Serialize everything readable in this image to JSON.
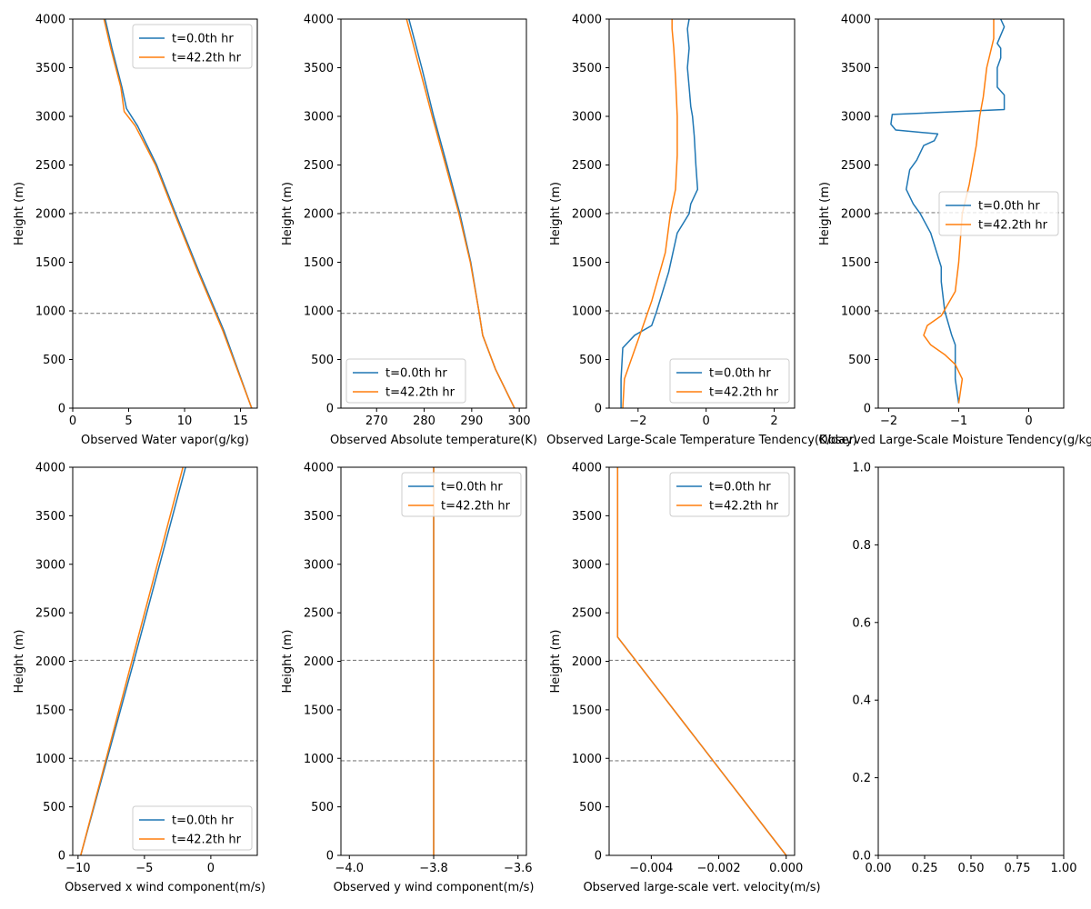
{
  "figure": {
    "colors": {
      "series0": "#1f77b4",
      "series1": "#ff7f0e",
      "axes": "#000000",
      "refline": "#808080",
      "legend_frame": "#cccccc"
    }
  },
  "chart_data": [
    {
      "type": "line",
      "xlabel": "Observed Water vapor(g/kg)",
      "ylabel": "Height (m)",
      "xlim": [
        0,
        16.5
      ],
      "ylim": [
        0,
        4000
      ],
      "xticks": [
        0,
        5,
        10,
        15
      ],
      "yticks": [
        0,
        500,
        1000,
        1500,
        2000,
        2500,
        3000,
        3500,
        4000
      ],
      "hlines": [
        975,
        2010
      ],
      "legend": "upper right",
      "series": [
        {
          "name": "t=0.0th hr",
          "x": [
            16.0,
            13.5,
            11.3,
            9.2,
            7.5,
            5.8,
            4.8,
            4.4,
            3.5,
            2.9
          ],
          "y": [
            0,
            800,
            1400,
            2000,
            2500,
            2900,
            3080,
            3300,
            3700,
            4000
          ]
        },
        {
          "name": "t=42.2th hr",
          "x": [
            16.0,
            13.4,
            11.2,
            9.1,
            7.4,
            5.6,
            4.6,
            4.3,
            3.4,
            2.8
          ],
          "y": [
            0,
            800,
            1400,
            2000,
            2500,
            2900,
            3050,
            3300,
            3700,
            4000
          ]
        }
      ]
    },
    {
      "type": "line",
      "xlabel": "Observed Absolute temperature(K)",
      "ylabel": "Height (m)",
      "xlim": [
        262.5,
        301.5
      ],
      "ylim": [
        0,
        4000
      ],
      "xticks": [
        270,
        280,
        290,
        300
      ],
      "yticks": [
        0,
        500,
        1000,
        1500,
        2000,
        2500,
        3000,
        3500,
        4000
      ],
      "hlines": [
        975,
        2010
      ],
      "legend": "lower left",
      "series": [
        {
          "name": "t=0.0th hr",
          "x": [
            299.0,
            295.0,
            292.3,
            291.5,
            289.8,
            287.5,
            284.8,
            282.0,
            279.5,
            276.8
          ],
          "y": [
            0,
            400,
            750,
            1000,
            1500,
            2000,
            2500,
            3000,
            3500,
            4000
          ]
        },
        {
          "name": "t=42.2th hr",
          "x": [
            299.0,
            295.0,
            292.3,
            291.5,
            289.7,
            287.3,
            284.5,
            281.7,
            279.0,
            276.3
          ],
          "y": [
            0,
            400,
            750,
            1000,
            1500,
            2000,
            2500,
            3000,
            3500,
            4000
          ]
        }
      ]
    },
    {
      "type": "line",
      "xlabel": "Observed Large-Scale Temperature Tendency(K/day)",
      "ylabel": "Height (m)",
      "xlim": [
        -2.85,
        2.6
      ],
      "ylim": [
        0,
        4000
      ],
      "xticks": [
        -2,
        0,
        2
      ],
      "yticks": [
        0,
        500,
        1000,
        1500,
        2000,
        2500,
        3000,
        3500,
        4000
      ],
      "hlines": [
        975,
        2010
      ],
      "legend": "lower right",
      "series": [
        {
          "name": "t=0.0th hr",
          "x": [
            -2.5,
            -2.5,
            -2.45,
            -2.1,
            -1.6,
            -1.45,
            -1.1,
            -0.85,
            -0.5,
            -0.45,
            -0.25,
            -0.3,
            -0.35,
            -0.4,
            -0.45,
            -0.5,
            -0.55,
            -0.5,
            -0.55,
            -0.5
          ],
          "y": [
            0,
            300,
            620,
            750,
            850,
            1000,
            1400,
            1800,
            2000,
            2100,
            2250,
            2500,
            2800,
            3000,
            3100,
            3300,
            3500,
            3700,
            3900,
            4000
          ]
        },
        {
          "name": "t=42.2th hr",
          "x": [
            -2.45,
            -2.4,
            -2.2,
            -1.9,
            -1.6,
            -1.2,
            -1.05,
            -0.9,
            -0.85,
            -0.85,
            -0.9,
            -0.95,
            -1.0,
            -1.0
          ],
          "y": [
            0,
            300,
            500,
            800,
            1100,
            1600,
            2000,
            2250,
            2600,
            3000,
            3400,
            3700,
            3900,
            4000
          ]
        }
      ]
    },
    {
      "type": "line",
      "xlabel": "Observed Large-Scale Moisture Tendency(g/kg/day)",
      "ylabel": "Height (m)",
      "xlim": [
        -2.15,
        0.5
      ],
      "ylim": [
        0,
        4000
      ],
      "xticks": [
        -2,
        -1,
        0
      ],
      "yticks": [
        0,
        500,
        1000,
        1500,
        2000,
        2500,
        3000,
        3500,
        4000
      ],
      "hlines": [
        975,
        2010
      ],
      "legend": "center right",
      "series": [
        {
          "name": "t=0.0th hr",
          "x": [
            -1.0,
            -1.05,
            -1.05,
            -1.1,
            -1.2,
            -1.25,
            -1.25,
            -1.4,
            -1.55,
            -1.65,
            -1.75,
            -1.7,
            -1.6,
            -1.5,
            -1.35,
            -1.3,
            -1.9,
            -1.97,
            -1.95,
            -0.35,
            -0.35,
            -0.45,
            -0.45,
            -0.4,
            -0.4,
            -0.45,
            -0.35,
            -0.4
          ],
          "y": [
            50,
            300,
            650,
            750,
            1000,
            1300,
            1450,
            1800,
            2000,
            2100,
            2250,
            2450,
            2550,
            2700,
            2750,
            2820,
            2860,
            2920,
            3020,
            3070,
            3220,
            3300,
            3500,
            3600,
            3700,
            3750,
            3920,
            4000
          ]
        },
        {
          "name": "t=42.2th hr",
          "x": [
            -1.0,
            -0.95,
            -1.05,
            -1.2,
            -1.4,
            -1.5,
            -1.45,
            -1.25,
            -1.05,
            -1.0,
            -0.95,
            -0.85,
            -0.75,
            -0.7,
            -0.65,
            -0.6,
            -0.5,
            -0.5
          ],
          "y": [
            50,
            300,
            450,
            550,
            650,
            750,
            850,
            950,
            1200,
            1500,
            2000,
            2300,
            2700,
            3000,
            3200,
            3500,
            3800,
            4000
          ]
        }
      ]
    },
    {
      "type": "line",
      "xlabel": "Observed x wind component(m/s)",
      "ylabel": "Height (m)",
      "xlim": [
        -10.4,
        3.5
      ],
      "ylim": [
        0,
        4000
      ],
      "xticks": [
        -10,
        -5,
        0
      ],
      "yticks": [
        0,
        500,
        1000,
        1500,
        2000,
        2500,
        3000,
        3500,
        4000
      ],
      "hlines": [
        975,
        2010
      ],
      "legend": "lower right",
      "series": [
        {
          "name": "t=0.0th hr",
          "x": [
            -9.8,
            -5.8,
            -1.9
          ],
          "y": [
            0,
            2000,
            4000
          ]
        },
        {
          "name": "t=42.2th hr",
          "x": [
            -9.8,
            -5.95,
            -2.1
          ],
          "y": [
            0,
            2000,
            4000
          ]
        }
      ]
    },
    {
      "type": "line",
      "xlabel": "Observed y wind component(m/s)",
      "ylabel": "Height (m)",
      "xlim": [
        -4.02,
        -3.58
      ],
      "ylim": [
        0,
        4000
      ],
      "xticks": [
        -4.0,
        -3.8,
        -3.6
      ],
      "xticklabels": [
        "−4.0",
        "−3.8",
        "−3.6"
      ],
      "yticks": [
        0,
        500,
        1000,
        1500,
        2000,
        2500,
        3000,
        3500,
        4000
      ],
      "hlines": [
        975,
        2010
      ],
      "legend": "upper right",
      "series": [
        {
          "name": "t=0.0th hr",
          "x": [
            -3.8,
            -3.8
          ],
          "y": [
            0,
            4000
          ]
        },
        {
          "name": "t=42.2th hr",
          "x": [
            -3.8,
            -3.8
          ],
          "y": [
            0,
            4000
          ]
        }
      ]
    },
    {
      "type": "line",
      "xlabel": "Observed large-scale vert. velocity(m/s)",
      "ylabel": "Height (m)",
      "xlim": [
        -0.00525,
        0.00025
      ],
      "ylim": [
        0,
        4000
      ],
      "xticks": [
        -0.004,
        -0.002,
        0.0
      ],
      "xticklabels": [
        "−0.004",
        "−0.002",
        "0.000"
      ],
      "yticks": [
        0,
        500,
        1000,
        1500,
        2000,
        2500,
        3000,
        3500,
        4000
      ],
      "hlines": [
        975,
        2010
      ],
      "legend": "upper right",
      "series": [
        {
          "name": "t=0.0th hr",
          "x": [
            0.0,
            -0.005,
            -0.005
          ],
          "y": [
            0,
            2250,
            4000
          ]
        },
        {
          "name": "t=42.2th hr",
          "x": [
            0.0,
            -0.005,
            -0.005
          ],
          "y": [
            0,
            2250,
            4000
          ]
        }
      ]
    },
    {
      "type": "line",
      "xlabel": "",
      "ylabel": "",
      "xlim": [
        0,
        1
      ],
      "ylim": [
        0,
        1
      ],
      "xticks": [
        0,
        0.25,
        0.5,
        0.75,
        1
      ],
      "xticklabels": [
        "0.00",
        "0.25",
        "0.50",
        "0.75",
        "1.00"
      ],
      "yticks": [
        0,
        0.2,
        0.4,
        0.6,
        0.8,
        1
      ],
      "yticklabels": [
        "0.0",
        "0.2",
        "0.4",
        "0.6",
        "0.8",
        "1.0"
      ],
      "hlines": [],
      "legend": "none",
      "series": []
    }
  ]
}
